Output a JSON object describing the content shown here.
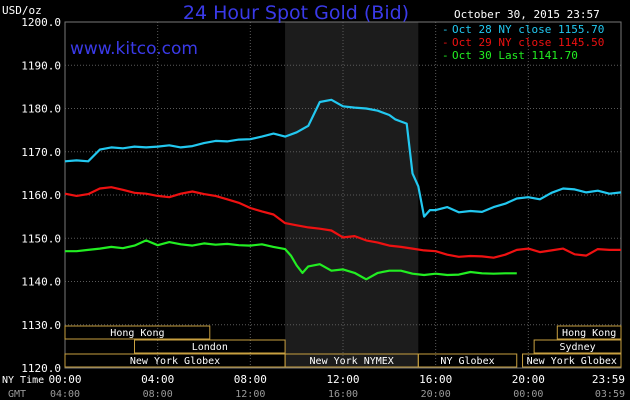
{
  "header": {
    "unit": "USD/oz",
    "title": "24 Hour Spot Gold (Bid)",
    "timestamp": "October 30, 2015 23:57",
    "website": "www.kitco.com"
  },
  "legend": [
    {
      "label": "Oct 28 NY close 1155.70",
      "color": "#22c8f0"
    },
    {
      "label": "Oct 29 NY close 1145.50",
      "color": "#ee1111"
    },
    {
      "label": "Oct 30 Last 1141.70",
      "color": "#22ee22"
    }
  ],
  "colors": {
    "background": "#000000",
    "plot_background": "#000000",
    "shaded_region": "#1c1c1c",
    "grid": "#5a5a5a",
    "axis_text": "#ffffff",
    "title": "#3a3ae8",
    "website": "#3a3ae8",
    "session_bar": "#c8a040"
  },
  "chart_data": {
    "type": "line",
    "title": "24 Hour Spot Gold (Bid)",
    "ylabel": "USD/oz",
    "xlabel": "",
    "ylim": [
      1120,
      1200
    ],
    "xlim": [
      0,
      24
    ],
    "grid": true,
    "legend_position": "top-right",
    "y_ticks": [
      "1120.0",
      "1130.0",
      "1140.0",
      "1150.0",
      "1160.0",
      "1170.0",
      "1180.0",
      "1190.0",
      "1200.0"
    ],
    "x_axis_rows": [
      {
        "name": "NY Time",
        "ticks": [
          "00:00",
          "04:00",
          "08:00",
          "12:00",
          "16:00",
          "20:00",
          "23:59"
        ]
      },
      {
        "name": "GMT",
        "ticks": [
          "04:00",
          "08:00",
          "12:00",
          "16:00",
          "20:00",
          "00:00",
          "03:59"
        ]
      }
    ],
    "shaded_region": [
      9.5,
      15.25
    ],
    "sessions": [
      {
        "label": "Hong Kong",
        "row": 0,
        "start": 0,
        "end": 6.25
      },
      {
        "label": "Hong Kong",
        "row": 0,
        "start": 21.25,
        "end": 24
      },
      {
        "label": "London",
        "row": 1,
        "start": 3,
        "end": 9.5
      },
      {
        "label": "Sydney",
        "row": 1,
        "start": 20.25,
        "end": 24
      },
      {
        "label": "New York Globex",
        "row": 2,
        "start": 0,
        "end": 9.5
      },
      {
        "label": "New York NYMEX",
        "row": 2,
        "start": 9.5,
        "end": 15.25
      },
      {
        "label": "NY Globex",
        "row": 2,
        "start": 15.25,
        "end": 19.5
      },
      {
        "label": "New York Globex",
        "row": 2,
        "start": 19.75,
        "end": 24
      }
    ],
    "series": [
      {
        "name": "Oct 28 NY close 1155.70",
        "color": "#22c8f0",
        "x": [
          0,
          0.5,
          1,
          1.5,
          2,
          2.5,
          3,
          3.5,
          4,
          4.5,
          5,
          5.5,
          6,
          6.5,
          7,
          7.5,
          8,
          8.5,
          9,
          9.5,
          10,
          10.5,
          11,
          11.5,
          12,
          12.5,
          13,
          13.5,
          14,
          14.25,
          14.5,
          14.75,
          15,
          15.25,
          15.5,
          15.75,
          16,
          16.5,
          17,
          17.5,
          18,
          18.5,
          19,
          19.5,
          20,
          20.5,
          21,
          21.5,
          22,
          22.5,
          23,
          23.5,
          24
        ],
        "y": [
          1167.8,
          1168,
          1167.8,
          1170.5,
          1171,
          1170.8,
          1171.2,
          1171,
          1171.2,
          1171.5,
          1171,
          1171.3,
          1172,
          1172.5,
          1172.4,
          1172.8,
          1172.9,
          1173.5,
          1174.2,
          1173.5,
          1174.5,
          1176,
          1181.5,
          1182,
          1180.5,
          1180.2,
          1180,
          1179.5,
          1178.5,
          1177.5,
          1177,
          1176.5,
          1165,
          1162,
          1155,
          1156.5,
          1156.5,
          1157.2,
          1156,
          1156.3,
          1156.1,
          1157.2,
          1158,
          1159.2,
          1159.5,
          1159,
          1160.5,
          1161.5,
          1161.3,
          1160.6,
          1161,
          1160.3,
          1160.6
        ]
      },
      {
        "name": "Oct 29 NY close 1145.50",
        "color": "#ee1111",
        "x": [
          0,
          0.5,
          1,
          1.5,
          2,
          2.5,
          3,
          3.5,
          4,
          4.5,
          5,
          5.5,
          6,
          6.5,
          7,
          7.5,
          8,
          8.5,
          9,
          9.5,
          10,
          10.5,
          11,
          11.5,
          12,
          12.5,
          13,
          13.5,
          14,
          14.5,
          15,
          15.5,
          16,
          16.5,
          17,
          17.5,
          18,
          18.5,
          19,
          19.5,
          20,
          20.5,
          21,
          21.5,
          22,
          22.5,
          23,
          23.5,
          24
        ],
        "y": [
          1160.3,
          1159.8,
          1160.2,
          1161.5,
          1161.8,
          1161.2,
          1160.5,
          1160.3,
          1159.8,
          1159.5,
          1160.3,
          1160.8,
          1160.2,
          1159.8,
          1159,
          1158.2,
          1157,
          1156.2,
          1155.5,
          1153.5,
          1153,
          1152.5,
          1152.2,
          1151.8,
          1150.2,
          1150.5,
          1149.5,
          1149,
          1148.3,
          1148,
          1147.6,
          1147.2,
          1147,
          1146.2,
          1145.7,
          1145.9,
          1145.8,
          1145.5,
          1146.2,
          1147.3,
          1147.6,
          1146.8,
          1147.2,
          1147.6,
          1146.3,
          1146,
          1147.5,
          1147.3,
          1147.3
        ]
      },
      {
        "name": "Oct 30 Last 1141.70",
        "color": "#22ee22",
        "x": [
          0,
          0.5,
          1,
          1.5,
          2,
          2.5,
          3,
          3.5,
          4,
          4.5,
          5,
          5.5,
          6,
          6.5,
          7,
          7.5,
          8,
          8.5,
          9,
          9.5,
          9.75,
          10,
          10.25,
          10.5,
          11,
          11.5,
          12,
          12.5,
          13,
          13.5,
          14,
          14.5,
          15,
          15.5,
          16,
          16.5,
          17,
          17.5,
          18,
          18.5,
          19,
          19.5
        ],
        "y": [
          1147,
          1147,
          1147.3,
          1147.6,
          1148,
          1147.7,
          1148.3,
          1149.5,
          1148.4,
          1149.1,
          1148.6,
          1148.3,
          1148.8,
          1148.5,
          1148.7,
          1148.4,
          1148.3,
          1148.6,
          1148,
          1147.5,
          1146,
          1143.7,
          1142,
          1143.5,
          1144,
          1142.5,
          1142.8,
          1142,
          1140.5,
          1142,
          1142.5,
          1142.5,
          1141.8,
          1141.5,
          1141.8,
          1141.5,
          1141.6,
          1142.2,
          1141.9,
          1141.8,
          1141.9,
          1141.9
        ]
      }
    ]
  }
}
